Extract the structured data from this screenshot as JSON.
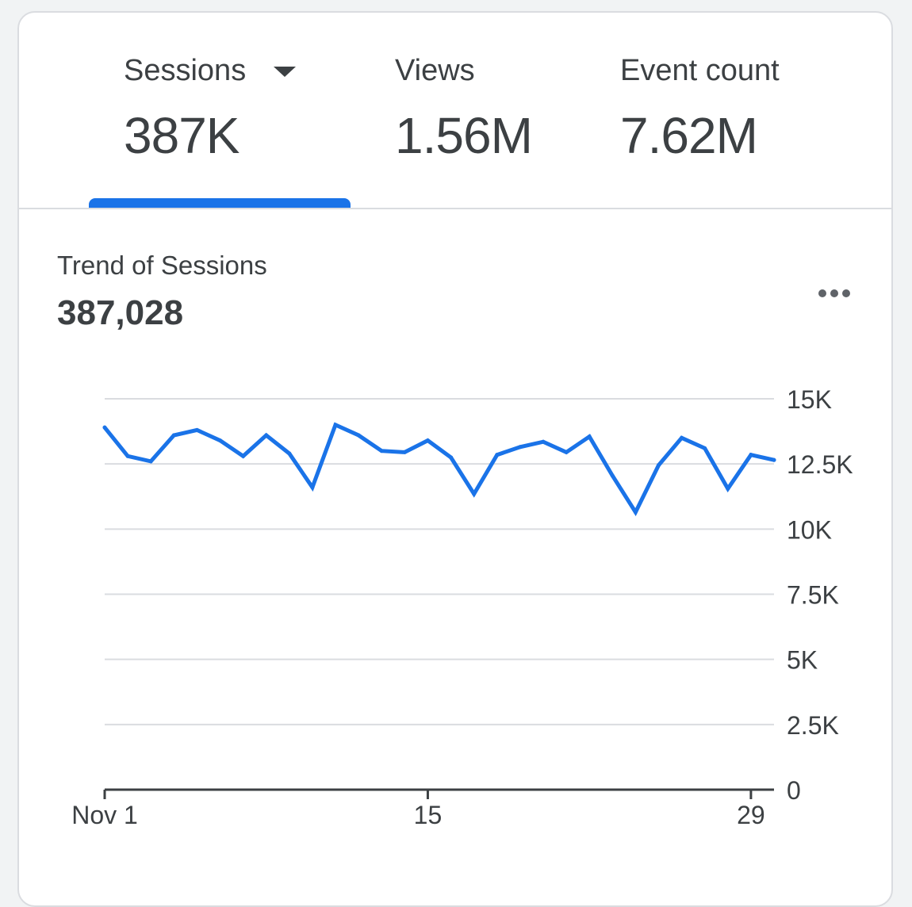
{
  "tabs": [
    {
      "label": "Sessions",
      "value": "387K",
      "selected": true,
      "has_dropdown": true
    },
    {
      "label": "Views",
      "value": "1.56M",
      "selected": false
    },
    {
      "label": "Event count",
      "value": "7.62M",
      "selected": false
    }
  ],
  "trend": {
    "title": "Trend of Sessions",
    "total": "387,028"
  },
  "more_icon": "more-horiz-icon",
  "colors": {
    "accent": "#1a73e8",
    "grid": "#dadce0",
    "text": "#3c4043",
    "axis": "#3c4043"
  },
  "chart_data": {
    "type": "line",
    "title": "Trend of Sessions",
    "xlabel": "",
    "ylabel": "",
    "x_tick_labels": [
      {
        "day": 1,
        "label": "Nov 1"
      },
      {
        "day": 15,
        "label": "15"
      },
      {
        "day": 29,
        "label": "29"
      }
    ],
    "y_ticks": [
      {
        "value": 0,
        "label": "0"
      },
      {
        "value": 2500,
        "label": "2.5K"
      },
      {
        "value": 5000,
        "label": "5K"
      },
      {
        "value": 7500,
        "label": "7.5K"
      },
      {
        "value": 10000,
        "label": "10K"
      },
      {
        "value": 12500,
        "label": "12.5K"
      },
      {
        "value": 15000,
        "label": "15K"
      }
    ],
    "ylim": [
      0,
      15000
    ],
    "xlim": [
      1,
      30
    ],
    "grid": true,
    "series": [
      {
        "color": "#1a73e8",
        "x": [
          1,
          2,
          3,
          4,
          5,
          6,
          7,
          8,
          9,
          10,
          11,
          12,
          13,
          14,
          15,
          16,
          17,
          18,
          19,
          20,
          21,
          22,
          23,
          24,
          25,
          26,
          27,
          28,
          29,
          30
        ],
        "values": [
          13900,
          12800,
          12600,
          13600,
          13800,
          13400,
          12800,
          13600,
          12900,
          11600,
          14000,
          13600,
          13000,
          12950,
          13400,
          12750,
          11350,
          12850,
          13150,
          13350,
          12950,
          13550,
          12050,
          10650,
          12450,
          13500,
          13100,
          11550,
          12850,
          12650
        ]
      }
    ]
  }
}
